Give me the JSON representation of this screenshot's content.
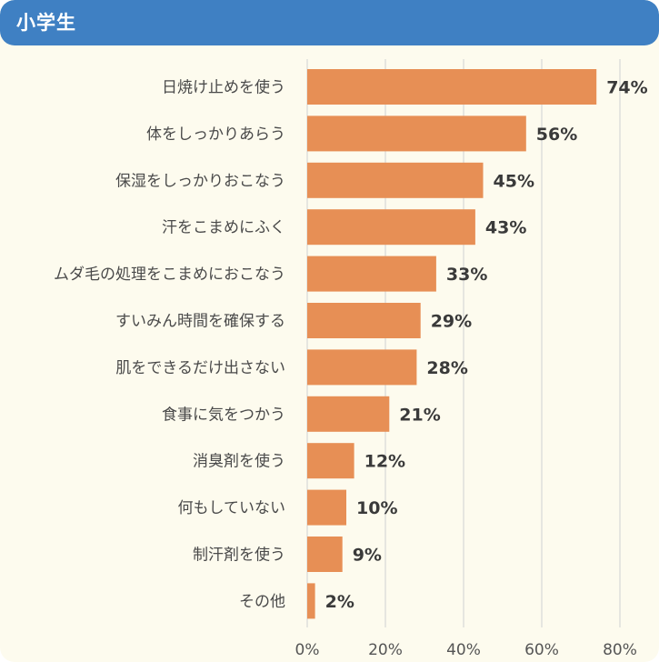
{
  "header": {
    "title": "小学生"
  },
  "colors": {
    "header_bg": "#3f80c3",
    "panel_bg": "#fdfbee",
    "bar": "#e78f55",
    "grid": "#d8d8d8"
  },
  "chart_data": {
    "type": "bar",
    "orientation": "horizontal",
    "title": "小学生",
    "categories": [
      "日焼け止めを使う",
      "体をしっかりあらう",
      "保湿をしっかりおこなう",
      "汗をこまめにふく",
      "ムダ毛の処理をこまめにおこなう",
      "すいみん時間を確保する",
      "肌をできるだけ出さない",
      "食事に気をつかう",
      "消臭剤を使う",
      "何もしていない",
      "制汗剤を使う",
      "その他"
    ],
    "values": [
      74,
      56,
      45,
      43,
      33,
      29,
      28,
      21,
      12,
      10,
      9,
      2
    ],
    "value_labels": [
      "74%",
      "56%",
      "45%",
      "43%",
      "33%",
      "29%",
      "28%",
      "21%",
      "12%",
      "10%",
      "9%",
      "2%"
    ],
    "xlim": [
      0,
      80
    ],
    "xticks": [
      0,
      20,
      40,
      60,
      80
    ],
    "xtick_labels": [
      "0%",
      "20%",
      "40%",
      "60%",
      "80%"
    ],
    "xlabel": "",
    "ylabel": "",
    "grid": true,
    "legend": "none"
  }
}
